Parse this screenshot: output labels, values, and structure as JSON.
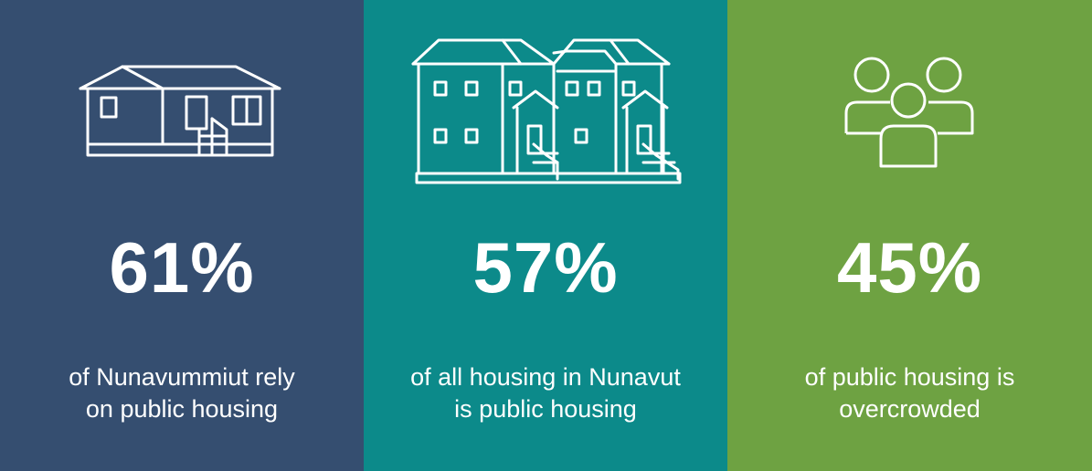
{
  "panels": [
    {
      "id": "nunavummiut",
      "color": "#354e70",
      "icon": "house-icon",
      "value": "61%",
      "caption": [
        "of Nunavummiut rely",
        "on public housing"
      ]
    },
    {
      "id": "all-housing",
      "color": "#0c8a8a",
      "icon": "rowhouse-icon",
      "value": "57%",
      "caption": [
        "of all housing in Nunavut",
        "is public housing"
      ]
    },
    {
      "id": "overcrowded",
      "color": "#6ea242",
      "icon": "people-icon",
      "value": "45%",
      "caption": [
        "of public housing is",
        "overcrowded"
      ]
    }
  ]
}
